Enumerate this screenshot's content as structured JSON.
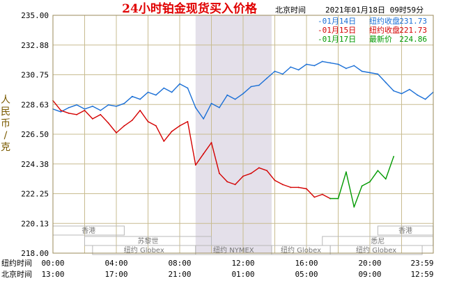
{
  "chart_data": {
    "type": "line",
    "title": "24小时铂金现货买入价格",
    "timestamp_label": "北京时间",
    "timestamp": "2021年01月18日 09时59分",
    "ylabel": "人民币/克",
    "ylim": [
      218.0,
      235.0
    ],
    "yticks": [
      "235.00",
      "232.88",
      "230.75",
      "228.63",
      "226.50",
      "224.38",
      "222.25",
      "220.13",
      "218.00"
    ],
    "x_hours": [
      0,
      24
    ],
    "x_rows": [
      {
        "label": "纽约时间",
        "ticks": [
          "00:00",
          "04:00",
          "08:00",
          "12:00",
          "16:00",
          "20:00",
          "23:59"
        ]
      },
      {
        "label": "北京时间",
        "ticks": [
          "13:00",
          "17:00",
          "21:00",
          "01:00",
          "05:00",
          "09:00",
          "12:59"
        ]
      }
    ],
    "shaded_hours": [
      9,
      13.8
    ],
    "markets": [
      {
        "name": "香港",
        "row": 0,
        "start": 0,
        "end": 4.5
      },
      {
        "name": "香港",
        "row": 0,
        "start": 20.5,
        "end": 23.99
      },
      {
        "name": "苏黎世",
        "row": 1,
        "start": 2,
        "end": 10
      },
      {
        "name": "悉尼",
        "row": 1,
        "start": 17,
        "end": 23.99
      },
      {
        "name": "纽约 Globex",
        "row": 2,
        "start": 2.5,
        "end": 9
      },
      {
        "name": "纽约 NYMEX",
        "row": 2,
        "start": 9,
        "end": 13.8
      },
      {
        "name": "纽约 Globex",
        "row": 2,
        "start": 13.8,
        "end": 17.5
      },
      {
        "name": "纽约 Globex",
        "row": 2,
        "start": 17.5,
        "end": 23.3
      }
    ],
    "legend": [
      {
        "date": "01月14日",
        "label": "纽约收盘",
        "value": "231.73",
        "color": "#1a6fd6"
      },
      {
        "date": "01月15日",
        "label": "纽约收盘",
        "value": "221.73",
        "color": "#d40000"
      },
      {
        "date": "01月17日",
        "label": "最新价",
        "value": "224.86",
        "color": "#009900"
      }
    ],
    "series": [
      {
        "color": "#1a6fd6",
        "x": [
          0,
          0.5,
          1,
          1.5,
          2,
          2.5,
          3,
          3.5,
          4,
          4.5,
          5,
          5.5,
          6,
          6.5,
          7,
          7.5,
          8,
          8.5,
          9,
          9.5,
          10,
          10.5,
          11,
          11.5,
          12,
          12.5,
          13,
          13.5,
          14,
          14.5,
          15,
          15.5,
          16,
          16.5,
          17,
          17.5,
          18,
          18.5,
          19,
          19.5,
          20,
          20.5,
          21,
          21.5,
          22,
          22.5,
          23,
          23.5,
          23.99
        ],
        "y": [
          228.3,
          228.1,
          228.4,
          228.6,
          228.3,
          228.5,
          228.2,
          228.6,
          228.5,
          228.7,
          229.2,
          229.0,
          229.5,
          229.3,
          229.8,
          229.5,
          230.1,
          229.8,
          228.4,
          227.6,
          228.7,
          228.4,
          229.3,
          229.0,
          229.4,
          229.9,
          230.0,
          230.5,
          231.0,
          230.8,
          231.3,
          231.1,
          231.5,
          231.4,
          231.7,
          231.6,
          231.5,
          231.2,
          231.4,
          231.0,
          230.9,
          230.8,
          230.2,
          229.6,
          229.4,
          229.7,
          229.3,
          229.0,
          229.5
        ]
      },
      {
        "color": "#d40000",
        "x": [
          0,
          0.5,
          1,
          1.5,
          2,
          2.5,
          3,
          3.5,
          4,
          4.5,
          5,
          5.5,
          6,
          6.5,
          7,
          7.5,
          8,
          8.5,
          9,
          9.5,
          10,
          10.5,
          11,
          11.5,
          12,
          12.5,
          13,
          13.5,
          14,
          14.5,
          15,
          15.5,
          16,
          16.5,
          17,
          17.5
        ],
        "y": [
          228.9,
          228.2,
          228.0,
          227.9,
          228.2,
          227.6,
          227.9,
          227.3,
          226.6,
          227.1,
          227.5,
          228.2,
          227.4,
          227.1,
          226.0,
          226.7,
          227.1,
          227.4,
          224.3,
          225.1,
          225.9,
          223.7,
          223.1,
          222.9,
          223.5,
          223.7,
          224.1,
          223.9,
          223.2,
          222.9,
          222.7,
          222.7,
          222.6,
          222.0,
          222.2,
          221.9
        ]
      },
      {
        "color": "#009900",
        "x": [
          17.5,
          18,
          18.5,
          19,
          19.5,
          20,
          20.5,
          21,
          21.5
        ],
        "y": [
          221.9,
          221.9,
          223.8,
          221.3,
          222.8,
          223.1,
          223.9,
          223.3,
          224.9
        ]
      }
    ]
  }
}
